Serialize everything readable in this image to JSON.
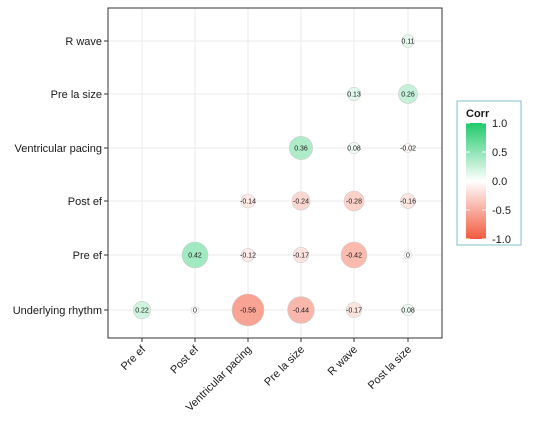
{
  "chart_data": {
    "type": "heatmap",
    "subtype": "correlation-circles",
    "x_categories": [
      "Pre ef",
      "Post ef",
      "Ventricular pacing",
      "Pre la size",
      "R wave",
      "Post la size"
    ],
    "y_categories": [
      "R wave",
      "Pre la size",
      "Ventricular pacing",
      "Post ef",
      "Pre ef",
      "Underlying rhythm"
    ],
    "cells": [
      {
        "x": "Post la size",
        "y": "R wave",
        "value": 0.11
      },
      {
        "x": "R wave",
        "y": "Pre la size",
        "value": 0.13
      },
      {
        "x": "Post la size",
        "y": "Pre la size",
        "value": 0.26
      },
      {
        "x": "Pre la size",
        "y": "Ventricular pacing",
        "value": 0.36
      },
      {
        "x": "R wave",
        "y": "Ventricular pacing",
        "value": 0.08
      },
      {
        "x": "Post la size",
        "y": "Ventricular pacing",
        "value": -0.02
      },
      {
        "x": "Ventricular pacing",
        "y": "Post ef",
        "value": -0.14
      },
      {
        "x": "Pre la size",
        "y": "Post ef",
        "value": -0.24
      },
      {
        "x": "R wave",
        "y": "Post ef",
        "value": -0.28
      },
      {
        "x": "Post la size",
        "y": "Post ef",
        "value": -0.16
      },
      {
        "x": "Post ef",
        "y": "Pre ef",
        "value": 0.42
      },
      {
        "x": "Ventricular pacing",
        "y": "Pre ef",
        "value": -0.12
      },
      {
        "x": "Pre la size",
        "y": "Pre ef",
        "value": -0.17
      },
      {
        "x": "R wave",
        "y": "Pre ef",
        "value": -0.42
      },
      {
        "x": "Post la size",
        "y": "Pre ef",
        "value": 0
      },
      {
        "x": "Pre ef",
        "y": "Underlying rhythm",
        "value": 0.22
      },
      {
        "x": "Post ef",
        "y": "Underlying rhythm",
        "value": 0
      },
      {
        "x": "Ventricular pacing",
        "y": "Underlying rhythm",
        "value": -0.56
      },
      {
        "x": "Pre la size",
        "y": "Underlying rhythm",
        "value": -0.44
      },
      {
        "x": "R wave",
        "y": "Underlying rhythm",
        "value": -0.17
      },
      {
        "x": "Post la size",
        "y": "Underlying rhythm",
        "value": 0.08
      }
    ],
    "value_labels": [
      "0.11",
      "0.13",
      "0.26",
      "0.36",
      "0.08",
      "-0.02",
      "-0.14",
      "-0.24",
      "-0.28",
      "-0.16",
      "0.42",
      "-0.12",
      "-0.17",
      "-0.42",
      "0",
      "0.22",
      "0",
      "-0.56",
      "-0.44",
      "-0.17",
      "0.08"
    ],
    "legend": {
      "title": "Corr",
      "ticks": [
        "1.0",
        "0.5",
        "0.0",
        "-0.5",
        "-1.0"
      ],
      "tick_values": [
        1.0,
        0.5,
        0.0,
        -0.5,
        -1.0
      ],
      "range": [
        -1.0,
        1.0
      ],
      "placement": "right"
    },
    "colors": {
      "positive": "#1fca6a",
      "neutral": "#ffffff",
      "negative": "#f25a3f",
      "grid": "#ebebeb",
      "panel_border": "#333333",
      "legend_border": "#7fc2cf"
    },
    "grid": true
  }
}
